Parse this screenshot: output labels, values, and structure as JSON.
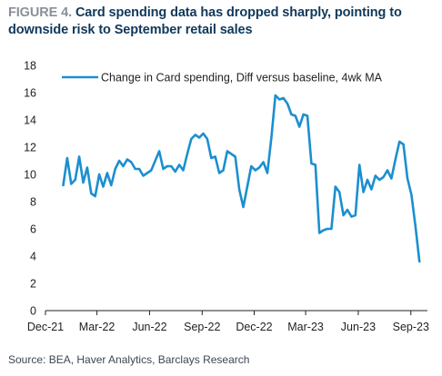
{
  "header": {
    "figure_label": "FIGURE 4.",
    "title": "Card spending data has dropped sharply, pointing to downside risk to September retail sales"
  },
  "footer": {
    "source": "Source: BEA, Haver Analytics, Barclays Research"
  },
  "colors": {
    "series": "#1b8fcf",
    "axis": "#222222",
    "title": "#10385a",
    "figure_label": "#8a9099"
  },
  "chart_data": {
    "type": "line",
    "title": "Card spending data has dropped sharply, pointing to downside risk to September retail sales",
    "xlabel": "",
    "ylabel": "",
    "ylim": [
      0,
      18
    ],
    "yticks": [
      0,
      2,
      4,
      6,
      8,
      10,
      12,
      14,
      16,
      18
    ],
    "xlim": [
      "2021-12-01",
      "2023-09-30"
    ],
    "xticks": [
      {
        "date": "2021-12-01",
        "label": "Dec-21"
      },
      {
        "date": "2022-03-01",
        "label": "Mar-22"
      },
      {
        "date": "2022-06-01",
        "label": "Jun-22"
      },
      {
        "date": "2022-09-01",
        "label": "Sep-22"
      },
      {
        "date": "2022-12-01",
        "label": "Dec-22"
      },
      {
        "date": "2023-03-01",
        "label": "Mar-23"
      },
      {
        "date": "2023-06-01",
        "label": "Jun-23"
      },
      {
        "date": "2023-09-01",
        "label": "Sep-23"
      }
    ],
    "grid": false,
    "legend_position": "top-left",
    "series": [
      {
        "name": "Change in Card spending, Diff versus baseline, 4wk MA",
        "points": [
          [
            "2022-01-01",
            9.2
          ],
          [
            "2022-01-08",
            11.2
          ],
          [
            "2022-01-15",
            9.3
          ],
          [
            "2022-01-22",
            9.6
          ],
          [
            "2022-01-29",
            11.3
          ],
          [
            "2022-02-05",
            9.4
          ],
          [
            "2022-02-12",
            10.5
          ],
          [
            "2022-02-19",
            8.6
          ],
          [
            "2022-02-26",
            8.4
          ],
          [
            "2022-03-05",
            10.0
          ],
          [
            "2022-03-12",
            9.1
          ],
          [
            "2022-03-19",
            10.1
          ],
          [
            "2022-03-26",
            9.2
          ],
          [
            "2022-04-02",
            10.4
          ],
          [
            "2022-04-09",
            11.0
          ],
          [
            "2022-04-16",
            10.6
          ],
          [
            "2022-04-23",
            11.1
          ],
          [
            "2022-04-30",
            10.9
          ],
          [
            "2022-05-07",
            10.4
          ],
          [
            "2022-05-14",
            10.4
          ],
          [
            "2022-05-21",
            9.9
          ],
          [
            "2022-05-28",
            10.1
          ],
          [
            "2022-06-04",
            10.3
          ],
          [
            "2022-06-11",
            11.0
          ],
          [
            "2022-06-18",
            11.7
          ],
          [
            "2022-06-25",
            10.4
          ],
          [
            "2022-07-02",
            10.6
          ],
          [
            "2022-07-09",
            10.6
          ],
          [
            "2022-07-16",
            10.2
          ],
          [
            "2022-07-23",
            10.7
          ],
          [
            "2022-07-30",
            10.3
          ],
          [
            "2022-08-06",
            11.5
          ],
          [
            "2022-08-13",
            12.6
          ],
          [
            "2022-08-20",
            12.9
          ],
          [
            "2022-08-27",
            12.7
          ],
          [
            "2022-09-03",
            13.0
          ],
          [
            "2022-09-10",
            12.6
          ],
          [
            "2022-09-17",
            11.2
          ],
          [
            "2022-09-24",
            11.3
          ],
          [
            "2022-10-01",
            10.1
          ],
          [
            "2022-10-08",
            10.3
          ],
          [
            "2022-10-15",
            11.7
          ],
          [
            "2022-10-22",
            11.5
          ],
          [
            "2022-10-29",
            11.3
          ],
          [
            "2022-11-05",
            8.9
          ],
          [
            "2022-11-12",
            7.6
          ],
          [
            "2022-11-19",
            9.1
          ],
          [
            "2022-11-26",
            10.6
          ],
          [
            "2022-12-03",
            10.3
          ],
          [
            "2022-12-10",
            10.5
          ],
          [
            "2022-12-17",
            10.9
          ],
          [
            "2022-12-24",
            10.1
          ],
          [
            "2022-12-31",
            12.7
          ],
          [
            "2023-01-07",
            15.8
          ],
          [
            "2023-01-14",
            15.5
          ],
          [
            "2023-01-21",
            15.6
          ],
          [
            "2023-01-28",
            15.2
          ],
          [
            "2023-02-04",
            14.4
          ],
          [
            "2023-02-11",
            14.3
          ],
          [
            "2023-02-18",
            13.5
          ],
          [
            "2023-02-25",
            14.4
          ],
          [
            "2023-03-04",
            14.3
          ],
          [
            "2023-03-11",
            10.8
          ],
          [
            "2023-03-18",
            10.7
          ],
          [
            "2023-03-25",
            5.7
          ],
          [
            "2023-04-01",
            5.9
          ],
          [
            "2023-04-08",
            6.0
          ],
          [
            "2023-04-15",
            6.0
          ],
          [
            "2023-04-22",
            9.1
          ],
          [
            "2023-04-29",
            8.7
          ],
          [
            "2023-05-06",
            7.0
          ],
          [
            "2023-05-13",
            7.4
          ],
          [
            "2023-05-20",
            6.9
          ],
          [
            "2023-05-27",
            7.0
          ],
          [
            "2023-06-03",
            10.7
          ],
          [
            "2023-06-10",
            8.7
          ],
          [
            "2023-06-17",
            9.6
          ],
          [
            "2023-06-24",
            8.9
          ],
          [
            "2023-07-01",
            9.9
          ],
          [
            "2023-07-08",
            9.6
          ],
          [
            "2023-07-15",
            9.8
          ],
          [
            "2023-07-22",
            10.3
          ],
          [
            "2023-07-29",
            9.7
          ],
          [
            "2023-08-05",
            11.1
          ],
          [
            "2023-08-12",
            12.4
          ],
          [
            "2023-08-19",
            12.2
          ],
          [
            "2023-08-26",
            9.7
          ],
          [
            "2023-09-02",
            8.5
          ],
          [
            "2023-09-09",
            6.2
          ],
          [
            "2023-09-16",
            3.6
          ]
        ]
      }
    ]
  }
}
